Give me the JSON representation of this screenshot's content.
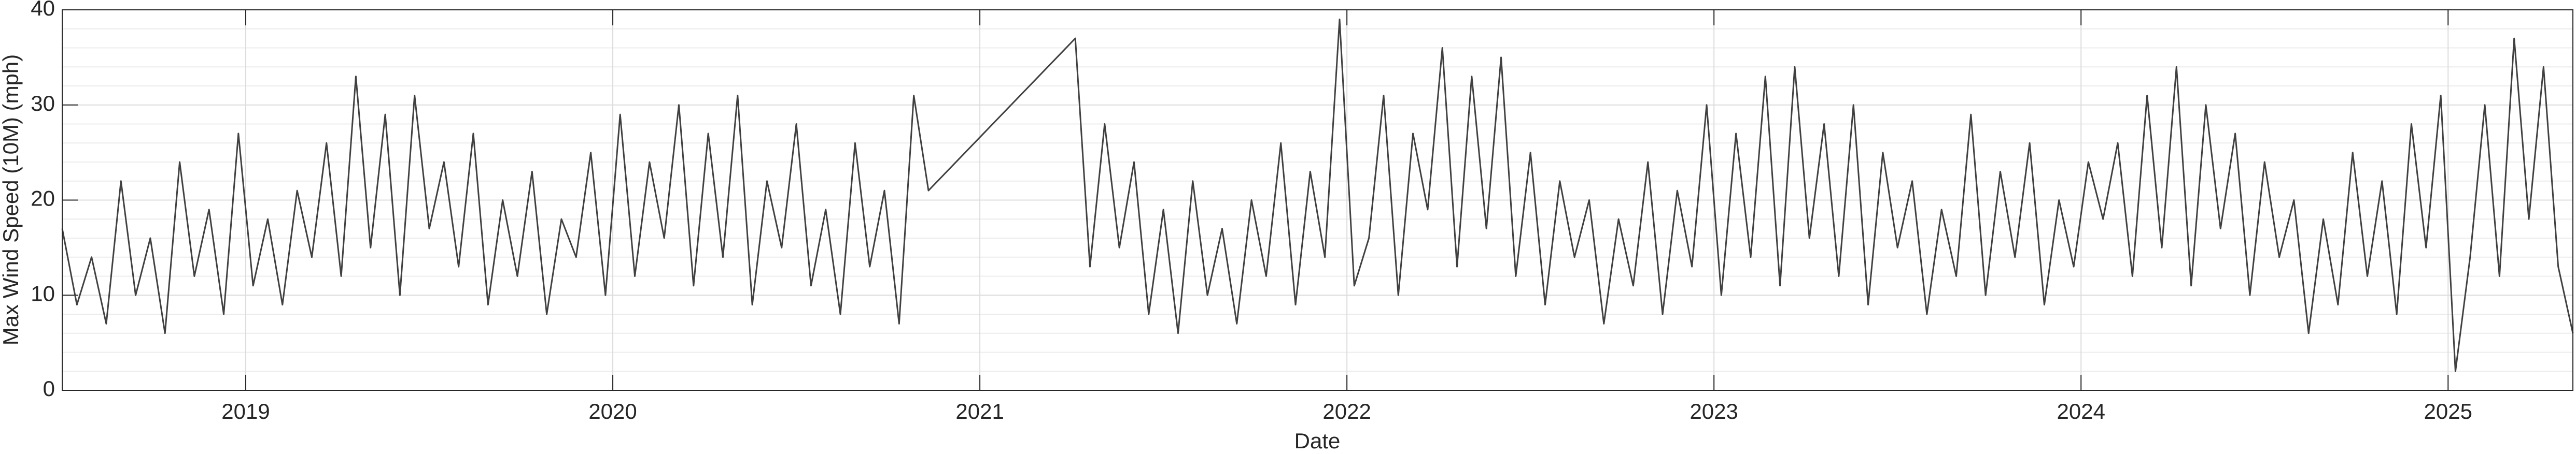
{
  "chart_data": {
    "type": "line",
    "y_label": "Max Wind Speed (10M) (mph)",
    "x_label": "Date",
    "color": "#404040",
    "grid": true,
    "minor_grid": true,
    "xlim": [
      2018.5,
      2025.34
    ],
    "xticks": [
      2019,
      2020,
      2021,
      2022,
      2023,
      2024,
      2025
    ],
    "ylim": [
      0,
      40
    ],
    "yticks": [
      0,
      10,
      20,
      30,
      40
    ],
    "x": [
      2018.5,
      2018.54,
      2018.58,
      2018.62,
      2018.66,
      2018.7,
      2018.74,
      2018.78,
      2018.82,
      2018.86,
      2018.9,
      2018.94,
      2018.98,
      2019.02,
      2019.06,
      2019.1,
      2019.14,
      2019.18,
      2019.22,
      2019.26,
      2019.3,
      2019.34,
      2019.38,
      2019.42,
      2019.46,
      2019.5,
      2019.54,
      2019.58,
      2019.62,
      2019.66,
      2019.7,
      2019.74,
      2019.78,
      2019.82,
      2019.86,
      2019.9,
      2019.94,
      2019.98,
      2020.02,
      2020.06,
      2020.1,
      2020.14,
      2020.18,
      2020.22,
      2020.26,
      2020.3,
      2020.34,
      2020.38,
      2020.42,
      2020.46,
      2020.5,
      2020.54,
      2020.58,
      2020.62,
      2020.66,
      2020.7,
      2020.74,
      2020.78,
      2020.82,
      2020.86,
      2021.26,
      2021.3,
      2021.34,
      2021.38,
      2021.42,
      2021.46,
      2021.5,
      2021.54,
      2021.58,
      2021.62,
      2021.66,
      2021.7,
      2021.74,
      2021.78,
      2021.82,
      2021.86,
      2021.9,
      2021.94,
      2021.98,
      2022.02,
      2022.06,
      2022.1,
      2022.14,
      2022.18,
      2022.22,
      2022.26,
      2022.3,
      2022.34,
      2022.38,
      2022.42,
      2022.46,
      2022.5,
      2022.54,
      2022.58,
      2022.62,
      2022.66,
      2022.7,
      2022.74,
      2022.78,
      2022.82,
      2022.86,
      2022.9,
      2022.94,
      2022.98,
      2023.02,
      2023.06,
      2023.1,
      2023.14,
      2023.18,
      2023.22,
      2023.26,
      2023.3,
      2023.34,
      2023.38,
      2023.42,
      2023.46,
      2023.5,
      2023.54,
      2023.58,
      2023.62,
      2023.66,
      2023.7,
      2023.74,
      2023.78,
      2023.82,
      2023.86,
      2023.9,
      2023.94,
      2023.98,
      2024.02,
      2024.06,
      2024.1,
      2024.14,
      2024.18,
      2024.22,
      2024.26,
      2024.3,
      2024.34,
      2024.38,
      2024.42,
      2024.46,
      2024.5,
      2024.54,
      2024.58,
      2024.62,
      2024.66,
      2024.7,
      2024.74,
      2024.78,
      2024.82,
      2024.86,
      2024.9,
      2024.94,
      2024.98,
      2025.02,
      2025.06,
      2025.1,
      2025.14,
      2025.18,
      2025.22,
      2025.26,
      2025.3,
      2025.34
    ],
    "values": [
      17,
      9,
      14,
      7,
      22,
      10,
      16,
      6,
      24,
      12,
      19,
      8,
      27,
      11,
      18,
      9,
      21,
      14,
      26,
      12,
      33,
      15,
      29,
      10,
      31,
      17,
      24,
      13,
      27,
      9,
      20,
      12,
      23,
      8,
      18,
      14,
      25,
      10,
      29,
      12,
      24,
      16,
      30,
      11,
      27,
      14,
      31,
      9,
      22,
      15,
      28,
      11,
      19,
      8,
      26,
      13,
      21,
      7,
      31,
      21,
      37,
      13,
      28,
      15,
      24,
      8,
      19,
      6,
      22,
      10,
      17,
      7,
      20,
      12,
      26,
      9,
      23,
      14,
      39,
      11,
      16,
      31,
      10,
      27,
      19,
      36,
      13,
      33,
      17,
      35,
      12,
      25,
      9,
      22,
      14,
      20,
      7,
      18,
      11,
      24,
      8,
      21,
      13,
      30,
      10,
      27,
      14,
      33,
      11,
      34,
      16,
      28,
      12,
      30,
      9,
      25,
      15,
      22,
      8,
      19,
      12,
      29,
      10,
      23,
      14,
      26,
      9,
      20,
      13,
      24,
      18,
      26,
      12,
      31,
      15,
      34,
      11,
      30,
      17,
      27,
      10,
      24,
      14,
      20,
      6,
      18,
      9,
      25,
      12,
      22,
      8,
      28,
      15,
      31,
      2,
      14,
      30,
      12,
      37,
      18,
      34,
      13,
      6
    ]
  }
}
